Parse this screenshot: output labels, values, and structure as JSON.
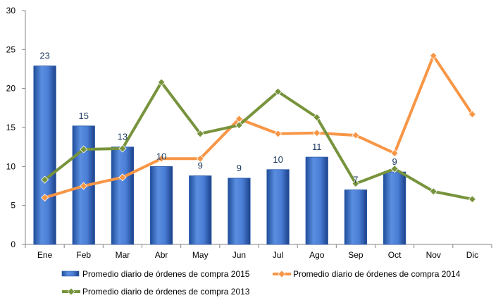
{
  "chart_data": {
    "type": "bar",
    "categories": [
      "Ene",
      "Feb",
      "Mar",
      "Abr",
      "May",
      "Jun",
      "Jul",
      "Ago",
      "Sep",
      "Oct",
      "Nov",
      "Dic"
    ],
    "ylim": [
      0,
      30
    ],
    "yticks": [
      0,
      5,
      10,
      15,
      20,
      25,
      30
    ],
    "grid": false,
    "legend_position": "bottom",
    "series": [
      {
        "name": "Promedio diario de órdenes de compra 2015",
        "kind": "bar",
        "color": "#3B6FC4",
        "values": [
          22.9,
          15.2,
          12.5,
          10.0,
          8.8,
          8.5,
          9.6,
          11.2,
          7.0,
          9.3,
          null,
          null
        ],
        "labels": [
          "23",
          "15",
          "13",
          "10",
          "9",
          "9",
          "10",
          "11",
          "7",
          "9",
          "",
          ""
        ]
      },
      {
        "name": "Promedio diario de órdenes de compra 2014",
        "kind": "line",
        "color": "#F79646",
        "values": [
          6.0,
          7.5,
          8.6,
          11.0,
          11.0,
          16.1,
          14.2,
          14.3,
          14.0,
          11.7,
          24.2,
          16.7
        ]
      },
      {
        "name": "Promedio diario de órdenes de compra 2013",
        "kind": "line",
        "color": "#77933C",
        "values": [
          8.3,
          12.2,
          12.3,
          20.8,
          14.2,
          15.3,
          19.6,
          16.3,
          7.8,
          9.7,
          6.8,
          5.8
        ]
      }
    ]
  }
}
